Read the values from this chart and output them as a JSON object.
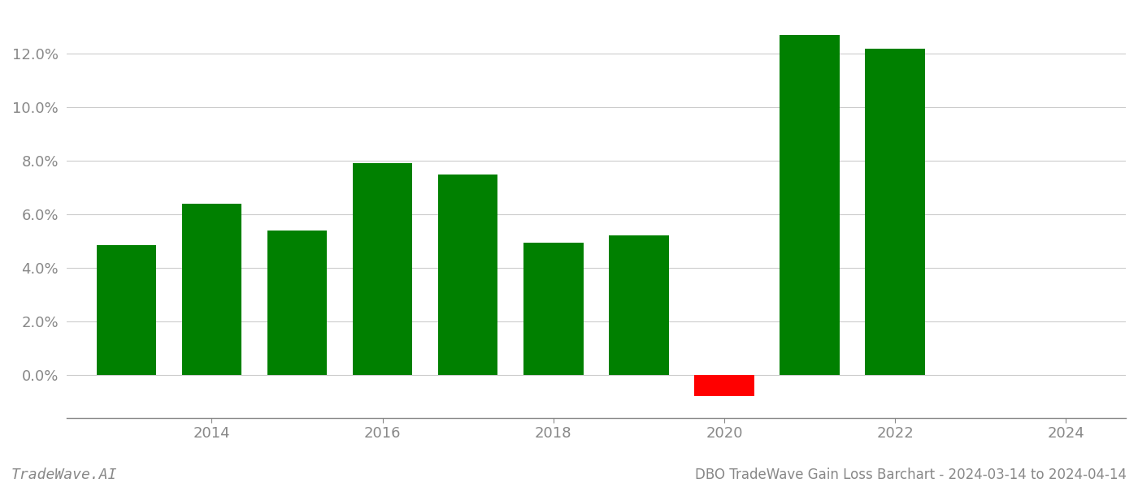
{
  "years": [
    2013,
    2014,
    2015,
    2016,
    2017,
    2018,
    2019,
    2020,
    2021,
    2022,
    2023
  ],
  "values": [
    0.0485,
    0.064,
    0.054,
    0.079,
    0.075,
    0.0495,
    0.052,
    -0.008,
    0.127,
    0.122,
    0.0
  ],
  "bar_colors": [
    "#008000",
    "#008000",
    "#008000",
    "#008000",
    "#008000",
    "#008000",
    "#008000",
    "#ff0000",
    "#008000",
    "#008000",
    "#ffffff"
  ],
  "title": "DBO TradeWave Gain Loss Barchart - 2024-03-14 to 2024-04-14",
  "watermark": "TradeWave.AI",
  "xlim": [
    2012.3,
    2024.7
  ],
  "ylim": [
    -0.016,
    0.1355
  ],
  "yticks": [
    0.0,
    0.02,
    0.04,
    0.06,
    0.08,
    0.1,
    0.12
  ],
  "xticks": [
    2014,
    2016,
    2018,
    2020,
    2022,
    2024
  ],
  "background_color": "#ffffff",
  "grid_color": "#cccccc",
  "bar_width": 0.7,
  "title_fontsize": 12,
  "tick_fontsize": 13,
  "watermark_fontsize": 13
}
